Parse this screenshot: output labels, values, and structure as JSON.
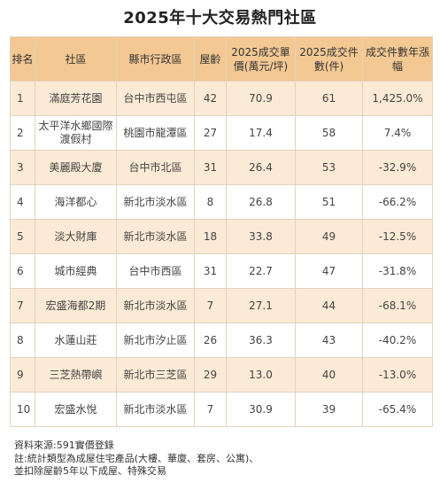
{
  "title": "2025年十大交易熱門社區",
  "headers": [
    "排名",
    "社區",
    "縣市行政區",
    "屋齡",
    "2025成交單價(萬元/坪)",
    "2025成交件數(件)",
    "成交件數年漲幅"
  ],
  "rows": [
    {
      "rank": "1",
      "community": "滿庭芳花園",
      "district": "台中市西屯區",
      "age": "42",
      "price": "70.9",
      "count": "61",
      "growth": "1,425.0%"
    },
    {
      "rank": "2",
      "community": "太平洋水鄉國際渡假村",
      "district": "桃園市龍潭區",
      "age": "27",
      "price": "17.4",
      "count": "58",
      "growth": "7.4%"
    },
    {
      "rank": "3",
      "community": "美麗殿大廈",
      "district": "台中市北區",
      "age": "31",
      "price": "26.4",
      "count": "53",
      "growth": "-32.9%"
    },
    {
      "rank": "4",
      "community": "海洋都心",
      "district": "新北市淡水區",
      "age": "8",
      "price": "26.8",
      "count": "51",
      "growth": "-66.2%"
    },
    {
      "rank": "5",
      "community": "淡大財庫",
      "district": "新北市淡水區",
      "age": "18",
      "price": "33.8",
      "count": "49",
      "growth": "-12.5%"
    },
    {
      "rank": "6",
      "community": "城市經典",
      "district": "台中市西區",
      "age": "31",
      "price": "22.7",
      "count": "47",
      "growth": "-31.8%"
    },
    {
      "rank": "7",
      "community": "宏盛海都2期",
      "district": "新北市淡水區",
      "age": "7",
      "price": "27.1",
      "count": "44",
      "growth": "-68.1%"
    },
    {
      "rank": "8",
      "community": "水蓮山莊",
      "district": "新北市汐止區",
      "age": "26",
      "price": "36.3",
      "count": "43",
      "growth": "-40.2%"
    },
    {
      "rank": "9",
      "community": "三芝熱帶嶼",
      "district": "新北市三芝區",
      "age": "29",
      "price": "13.0",
      "count": "40",
      "growth": "-13.0%"
    },
    {
      "rank": "10",
      "community": "宏盛水悅",
      "district": "新北市淡水區",
      "age": "7",
      "price": "30.9",
      "count": "39",
      "growth": "-65.4%"
    }
  ],
  "notes": [
    "資料來源:591實價登錄",
    "註:統計類型為成屋住宅產品(大樓、華廈、套房、公寓)、",
    "並扣除屋齡5年以下成屋、特殊交易"
  ]
}
